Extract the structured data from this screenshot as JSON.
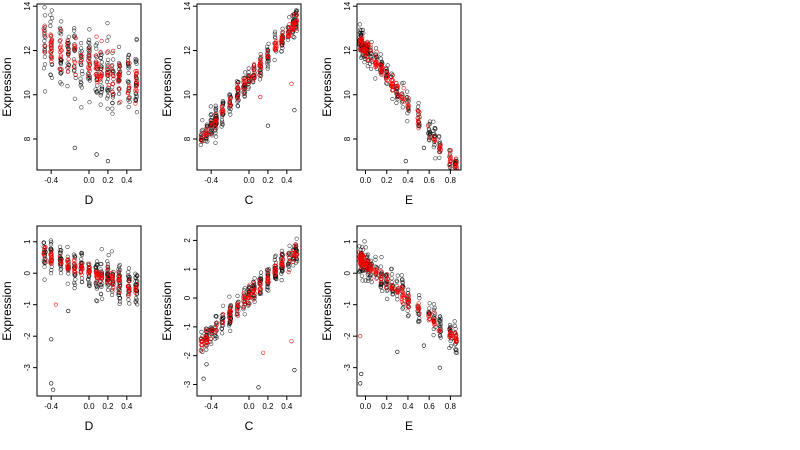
{
  "figure": {
    "background": "#ffffff",
    "point_colors": {
      "observed": "#000000",
      "fitted": "#ff0000"
    }
  },
  "chart_data": [
    {
      "type": "scatter",
      "title": "",
      "xlabel": "D",
      "ylabel": "Expression",
      "xlim": [
        -0.55,
        0.55
      ],
      "ylim": [
        6.6,
        14.1
      ],
      "xticks": [
        -0.4,
        0.0,
        0.2,
        0.4
      ],
      "xtick_labels": [
        "-0.4",
        "0.0",
        "0.2",
        "0.4"
      ],
      "yticks": [
        8,
        10,
        12,
        14
      ],
      "ytick_labels": [
        "8",
        "10",
        "12",
        "14"
      ],
      "grid": false,
      "x_groups": [
        -0.47,
        -0.4,
        -0.3,
        -0.22,
        -0.15,
        -0.08,
        0.0,
        0.08,
        0.13,
        0.2,
        0.25,
        0.32,
        0.42,
        0.5
      ],
      "trend": {
        "slope": -2.0,
        "intercept": 11.4
      },
      "series": [
        {
          "color": "#000000",
          "role": "observed",
          "n": 300,
          "spread": 1.5,
          "outliers": [
            [
              0.08,
              7.3
            ],
            [
              0.2,
              7.0
            ],
            [
              -0.15,
              7.6
            ]
          ]
        },
        {
          "color": "#ff0000",
          "role": "fitted",
          "n": 140,
          "spread": 0.9,
          "outliers": []
        }
      ]
    },
    {
      "type": "scatter",
      "title": "",
      "xlabel": "C",
      "ylabel": "Expression",
      "xlim": [
        -0.55,
        0.55
      ],
      "ylim": [
        6.6,
        14.1
      ],
      "xticks": [
        -0.4,
        0.0,
        0.2,
        0.4
      ],
      "xtick_labels": [
        "-0.4",
        "0.0",
        "0.2",
        "0.4"
      ],
      "yticks": [
        8,
        10,
        12,
        14
      ],
      "ytick_labels": [
        "8",
        "10",
        "12",
        "14"
      ],
      "grid": false,
      "x_groups": [
        -0.5,
        -0.45,
        -0.4,
        -0.35,
        -0.28,
        -0.2,
        -0.12,
        -0.05,
        0.0,
        0.05,
        0.12,
        0.2,
        0.28,
        0.35,
        0.42,
        0.47,
        0.5
      ],
      "trend": {
        "slope": 5.3,
        "intercept": 10.7
      },
      "series": [
        {
          "color": "#000000",
          "role": "observed",
          "n": 300,
          "spread": 0.55,
          "outliers": [
            [
              0.2,
              8.6
            ],
            [
              0.48,
              9.3
            ]
          ]
        },
        {
          "color": "#ff0000",
          "role": "fitted",
          "n": 140,
          "spread": 0.3,
          "outliers": [
            [
              0.12,
              9.9
            ],
            [
              0.45,
              10.5
            ]
          ]
        }
      ]
    },
    {
      "type": "scatter",
      "title": "",
      "xlabel": "E",
      "ylabel": "Expression",
      "xlim": [
        -0.08,
        0.9
      ],
      "ylim": [
        6.6,
        14.1
      ],
      "xticks": [
        0.0,
        0.2,
        0.4,
        0.6,
        0.8
      ],
      "xtick_labels": [
        "0.0",
        "0.2",
        "0.4",
        "0.6",
        "0.8"
      ],
      "yticks": [
        8,
        10,
        12,
        14
      ],
      "ytick_labels": [
        "8",
        "10",
        "12",
        "14"
      ],
      "grid": false,
      "x_groups": [
        -0.05,
        -0.04,
        -0.03,
        0.0,
        0.02,
        0.05,
        0.1,
        0.15,
        0.2,
        0.25,
        0.3,
        0.35,
        0.4,
        0.5,
        0.6,
        0.65,
        0.7,
        0.8,
        0.85
      ],
      "trend": {
        "slope": -6.3,
        "intercept": 12.1
      },
      "series": [
        {
          "color": "#000000",
          "role": "observed",
          "n": 280,
          "spread": 0.55,
          "outliers": [
            [
              0.38,
              7.0
            ],
            [
              0.55,
              7.6
            ]
          ]
        },
        {
          "color": "#ff0000",
          "role": "fitted",
          "n": 160,
          "spread": 0.35,
          "outliers": []
        }
      ]
    },
    {
      "type": "scatter",
      "title": "",
      "xlabel": "D",
      "ylabel": "Expression",
      "xlim": [
        -0.55,
        0.55
      ],
      "ylim": [
        -3.9,
        1.5
      ],
      "xticks": [
        -0.4,
        0.0,
        0.2,
        0.4
      ],
      "xtick_labels": [
        "-0.4",
        "0.0",
        "0.2",
        "0.4"
      ],
      "yticks": [
        -3,
        -2,
        -1,
        0,
        1
      ],
      "ytick_labels": [
        "-3",
        "-2",
        "-1",
        "0",
        "1"
      ],
      "grid": false,
      "x_groups": [
        -0.47,
        -0.4,
        -0.3,
        -0.22,
        -0.15,
        -0.08,
        0.0,
        0.08,
        0.13,
        0.2,
        0.25,
        0.32,
        0.42,
        0.5
      ],
      "trend": {
        "slope": -1.1,
        "intercept": 0.05
      },
      "series": [
        {
          "color": "#000000",
          "role": "observed",
          "n": 300,
          "spread": 0.5,
          "outliers": [
            [
              -0.4,
              -2.1
            ],
            [
              -0.4,
              -3.5
            ],
            [
              -0.38,
              -3.7
            ],
            [
              -0.22,
              -1.2
            ]
          ]
        },
        {
          "color": "#ff0000",
          "role": "fitted",
          "n": 140,
          "spread": 0.25,
          "outliers": [
            [
              -0.35,
              -1.0
            ]
          ]
        }
      ]
    },
    {
      "type": "scatter",
      "title": "",
      "xlabel": "C",
      "ylabel": "Expression",
      "xlim": [
        -0.55,
        0.55
      ],
      "ylim": [
        -3.4,
        2.5
      ],
      "xticks": [
        -0.4,
        0.0,
        0.2,
        0.4
      ],
      "xtick_labels": [
        "-0.4",
        "0.0",
        "0.2",
        "0.4"
      ],
      "yticks": [
        -3,
        -2,
        -1,
        0,
        1,
        2
      ],
      "ytick_labels": [
        "-3",
        "-2",
        "-1",
        "0",
        "1",
        "2"
      ],
      "grid": false,
      "x_groups": [
        -0.5,
        -0.45,
        -0.4,
        -0.35,
        -0.28,
        -0.2,
        -0.12,
        -0.05,
        0.0,
        0.05,
        0.12,
        0.2,
        0.28,
        0.35,
        0.42,
        0.47,
        0.5
      ],
      "trend": {
        "slope": 3.1,
        "intercept": 0.05
      },
      "series": [
        {
          "color": "#000000",
          "role": "observed",
          "n": 300,
          "spread": 0.45,
          "outliers": [
            [
              -0.48,
              -2.8
            ],
            [
              -0.45,
              -2.3
            ],
            [
              0.48,
              -2.5
            ],
            [
              0.1,
              -3.1
            ]
          ]
        },
        {
          "color": "#ff0000",
          "role": "fitted",
          "n": 140,
          "spread": 0.25,
          "outliers": [
            [
              0.15,
              -1.9
            ],
            [
              0.45,
              -1.5
            ]
          ]
        }
      ]
    },
    {
      "type": "scatter",
      "title": "",
      "xlabel": "E",
      "ylabel": "Expression",
      "xlim": [
        -0.08,
        0.9
      ],
      "ylim": [
        -3.9,
        1.5
      ],
      "xticks": [
        0.0,
        0.2,
        0.4,
        0.6,
        0.8
      ],
      "xtick_labels": [
        "0.0",
        "0.2",
        "0.4",
        "0.6",
        "0.8"
      ],
      "yticks": [
        -3,
        -2,
        -1,
        0,
        1
      ],
      "ytick_labels": [
        "-3",
        "-2",
        "-1",
        "0",
        "1"
      ],
      "grid": false,
      "x_groups": [
        -0.05,
        -0.04,
        -0.03,
        0.0,
        0.02,
        0.05,
        0.1,
        0.15,
        0.2,
        0.25,
        0.3,
        0.35,
        0.4,
        0.5,
        0.6,
        0.65,
        0.7,
        0.8,
        0.85
      ],
      "trend": {
        "slope": -2.8,
        "intercept": 0.3
      },
      "series": [
        {
          "color": "#000000",
          "role": "observed",
          "n": 280,
          "spread": 0.45,
          "outliers": [
            [
              -0.05,
              -3.5
            ],
            [
              -0.04,
              -3.2
            ],
            [
              0.3,
              -2.5
            ],
            [
              0.55,
              -2.3
            ],
            [
              0.7,
              -3.0
            ]
          ]
        },
        {
          "color": "#ff0000",
          "role": "fitted",
          "n": 160,
          "spread": 0.2,
          "outliers": [
            [
              -0.05,
              -2.0
            ]
          ]
        }
      ]
    }
  ]
}
